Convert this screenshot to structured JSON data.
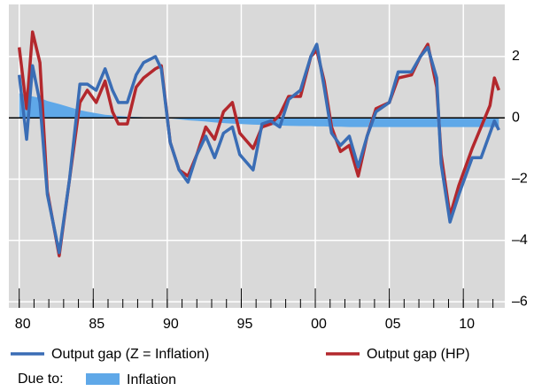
{
  "chart_data": {
    "type": "line",
    "x": [
      1980.0,
      1980.5,
      1980.9,
      1981.4,
      1981.9,
      1982.7,
      1983.4,
      1984.1,
      1984.6,
      1985.2,
      1985.8,
      1986.3,
      1986.7,
      1987.3,
      1987.9,
      1988.4,
      1989.2,
      1989.6,
      1990.2,
      1990.8,
      1991.4,
      1992.0,
      1992.6,
      1993.2,
      1993.8,
      1994.4,
      1994.9,
      1995.8,
      1996.4,
      1997.0,
      1997.6,
      1998.2,
      1999.0,
      1999.7,
      2000.1,
      2000.6,
      2001.1,
      2001.7,
      2002.3,
      2002.9,
      2003.5,
      2004.1,
      2005.0,
      2005.6,
      2006.5,
      2007.1,
      2007.6,
      2008.2,
      2008.5,
      2009.1,
      2009.7,
      2010.6,
      2011.2,
      2011.8,
      2012.1,
      2012.4
    ],
    "series": [
      {
        "name": "Inflation",
        "type": "area",
        "color": "#5fa8e8",
        "values": [
          0.8,
          0.75,
          0.7,
          0.65,
          0.55,
          0.45,
          0.35,
          0.25,
          0.2,
          0.15,
          0.1,
          0.08,
          0.06,
          0.04,
          0.03,
          0.02,
          0.01,
          0,
          -0.02,
          -0.05,
          -0.08,
          -0.1,
          -0.12,
          -0.15,
          -0.17,
          -0.19,
          -0.2,
          -0.22,
          -0.23,
          -0.24,
          -0.25,
          -0.26,
          -0.27,
          -0.27,
          -0.28,
          -0.28,
          -0.29,
          -0.29,
          -0.3,
          -0.3,
          -0.3,
          -0.3,
          -0.3,
          -0.3,
          -0.3,
          -0.3,
          -0.3,
          -0.3,
          -0.3,
          -0.3,
          -0.3,
          -0.3,
          -0.3,
          -0.3,
          -0.3,
          -0.3
        ]
      },
      {
        "name": "Output gap (HP)",
        "type": "line",
        "color": "#b3282d",
        "values": [
          2.3,
          0.3,
          2.8,
          1.8,
          -2.4,
          -4.5,
          -2.0,
          0.5,
          0.9,
          0.5,
          1.2,
          0.2,
          -0.2,
          -0.2,
          1.0,
          1.3,
          1.6,
          1.7,
          -0.8,
          -1.7,
          -1.9,
          -1.2,
          -0.3,
          -0.7,
          0.2,
          0.5,
          -0.5,
          -1.0,
          -0.3,
          -0.2,
          0.1,
          0.7,
          0.7,
          2.0,
          2.2,
          1.2,
          -0.3,
          -1.1,
          -0.9,
          -1.9,
          -0.6,
          0.3,
          0.5,
          1.3,
          1.4,
          2.0,
          2.4,
          1.0,
          -1.2,
          -3.2,
          -2.2,
          -1.0,
          -0.3,
          0.4,
          1.3,
          0.9
        ]
      },
      {
        "name": "Output gap (Z = Inflation)",
        "type": "line",
        "color": "#3a6db5",
        "values": [
          1.4,
          -0.7,
          1.7,
          0.5,
          -2.5,
          -4.4,
          -2.0,
          1.1,
          1.1,
          0.9,
          1.6,
          0.9,
          0.5,
          0.5,
          1.4,
          1.8,
          2.0,
          1.6,
          -0.8,
          -1.7,
          -2.1,
          -1.2,
          -0.6,
          -1.3,
          -0.5,
          -0.3,
          -1.2,
          -1.7,
          -0.2,
          -0.1,
          -0.3,
          0.6,
          0.9,
          2.0,
          2.4,
          1.0,
          -0.5,
          -0.9,
          -0.6,
          -1.6,
          -0.6,
          0.2,
          0.5,
          1.5,
          1.5,
          2.0,
          2.3,
          1.3,
          -1.5,
          -3.4,
          -2.5,
          -1.3,
          -1.3,
          -0.5,
          -0.1,
          -0.4
        ]
      }
    ],
    "legend_group_label": "Due to:",
    "xlim": [
      1979.3,
      2012.8
    ],
    "xticks": [
      {
        "value": 1980,
        "label": "80"
      },
      {
        "value": 1985,
        "label": "85"
      },
      {
        "value": 1990,
        "label": "90"
      },
      {
        "value": 1995,
        "label": "95"
      },
      {
        "value": 2000,
        "label": "00"
      },
      {
        "value": 2005,
        "label": "05"
      },
      {
        "value": 2010,
        "label": "10"
      }
    ],
    "xminorticks": [
      1980,
      1981,
      1982,
      1983,
      1984,
      1985,
      1986,
      1987,
      1988,
      1989,
      1990,
      1991,
      1992,
      1993,
      1994,
      1995,
      1996,
      1997,
      1998,
      1999,
      2000,
      2001,
      2002,
      2003,
      2004,
      2005,
      2006,
      2007,
      2008,
      2009,
      2010,
      2011,
      2012
    ],
    "ylim": [
      -6.2,
      3.7
    ],
    "yticks": [
      {
        "value": -6,
        "label": "–6"
      },
      {
        "value": -4,
        "label": "–4"
      },
      {
        "value": -2,
        "label": "–2"
      },
      0,
      2
    ],
    "grid": true,
    "background": "#d9d9d9"
  }
}
